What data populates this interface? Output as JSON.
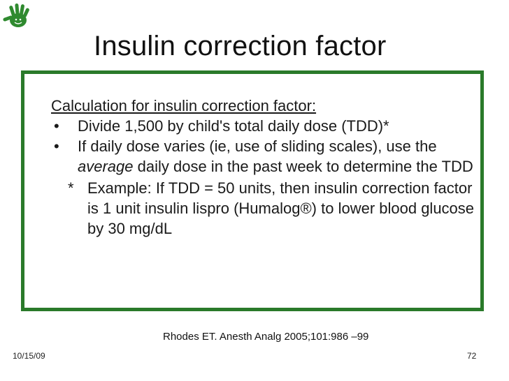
{
  "slide": {
    "title": "Insulin correction factor",
    "box": {
      "heading": "Calculation for insulin correction factor:",
      "bullet_symbol": "•",
      "bullet1": "Divide 1,500 by child's total daily dose (TDD)*",
      "bullet2_pre": "If daily dose varies (ie, use of sliding scales), use the ",
      "bullet2_em": "average",
      "bullet2_post": " daily dose in the past week to determine the TDD",
      "note_symbol": "*",
      "note": "Example: If TDD = 50 units, then insulin correction factor is 1 unit insulin lispro (Humalog®) to lower blood glucose by 30 mg/dL"
    },
    "citation": "Rhodes ET. Anesth Analg 2005;101:986 –99",
    "date": "10/15/09",
    "page_number": "72"
  },
  "colors": {
    "border": "#2a7a2a",
    "logo": "#2f8a2f"
  },
  "icons": {
    "logo": "hand-print-icon"
  }
}
